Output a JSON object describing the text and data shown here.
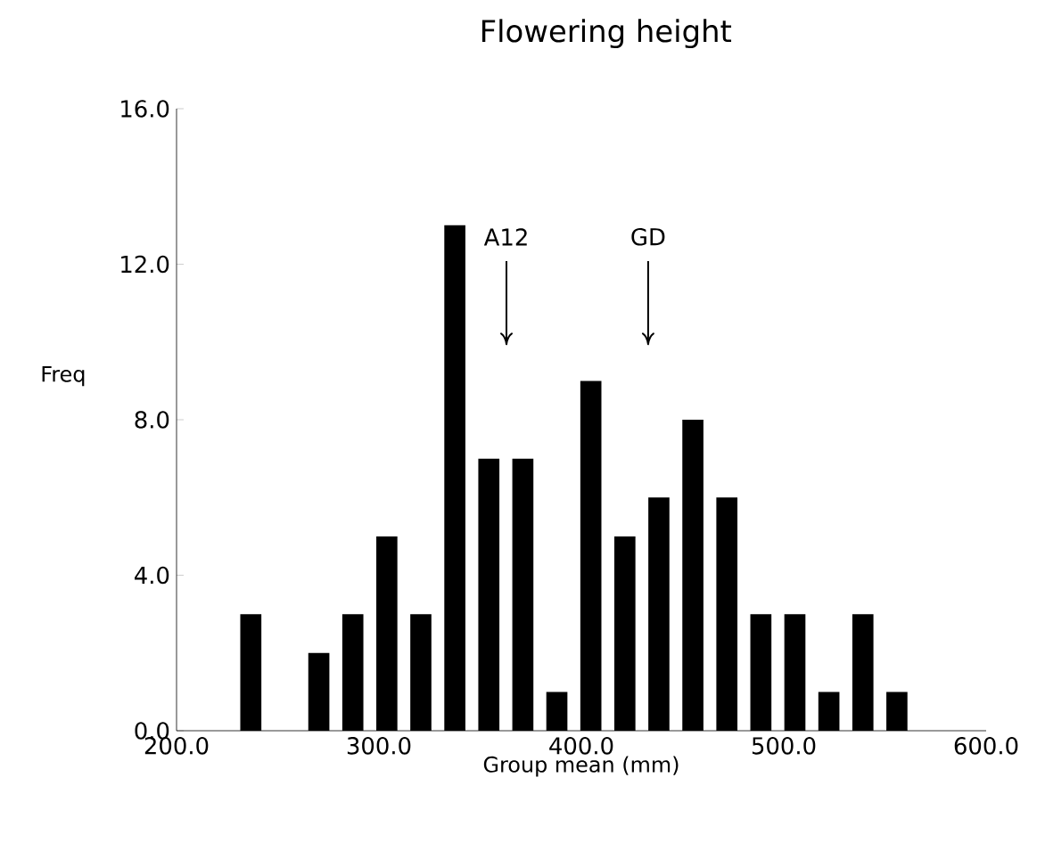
{
  "chart_data": {
    "type": "histogram",
    "title": "Flowering height",
    "xlabel": "Group mean (mm)",
    "ylabel": "Freq",
    "bins": [
      228.3,
      245.1,
      261.9,
      278.7,
      295.5,
      312.3,
      329.1,
      345.9,
      362.7,
      379.5,
      396.3,
      413.1,
      429.9,
      446.7,
      463.5,
      480.3,
      497.1,
      513.9,
      530.7,
      547.5,
      564.3
    ],
    "values": [
      3,
      0,
      2,
      3,
      5,
      3,
      13,
      7,
      7,
      1,
      9,
      5,
      6,
      8,
      6,
      3,
      3,
      1,
      3,
      1
    ],
    "color": "#000000",
    "xlim": [
      200,
      600
    ],
    "ylim": [
      0,
      16
    ],
    "xticks": [
      {
        "value": 200,
        "label": "200.0"
      },
      {
        "value": 300,
        "label": "300.0"
      },
      {
        "value": 400,
        "label": "400.0"
      },
      {
        "value": 500,
        "label": "500.0"
      },
      {
        "value": 600,
        "label": "600.0"
      }
    ],
    "yticks": [
      {
        "value": 0,
        "label": "0.0"
      },
      {
        "value": 4,
        "label": "4.0"
      },
      {
        "value": 8,
        "label": "8.0"
      },
      {
        "value": 12,
        "label": "12.0"
      },
      {
        "value": 16,
        "label": "16.0"
      }
    ],
    "annotations": [
      "A12",
      "GD"
    ]
  }
}
